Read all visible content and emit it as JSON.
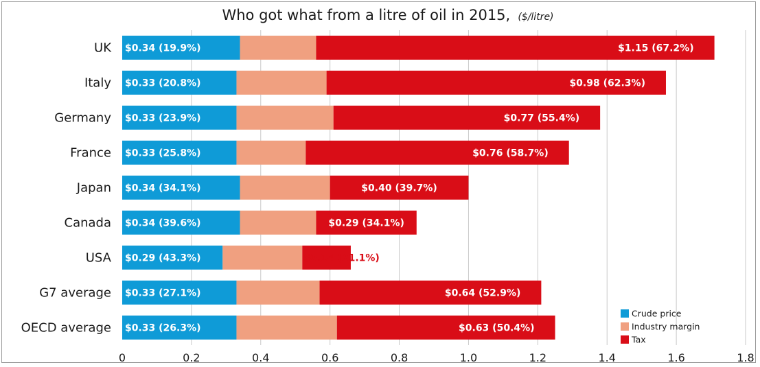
{
  "chart_data": {
    "type": "bar",
    "orientation": "horizontal",
    "stacked": true,
    "title": "Who got what from a litre of oil in 2015,",
    "title_unit": "($/litre)",
    "categories": [
      "UK",
      "Italy",
      "Germany",
      "France",
      "Japan",
      "Canada",
      "USA",
      "G7 average",
      "OECD average"
    ],
    "series": [
      {
        "name": "Crude price",
        "color": "#0f9bd7",
        "values": [
          0.34,
          0.33,
          0.33,
          0.33,
          0.34,
          0.34,
          0.29,
          0.33,
          0.33
        ],
        "labels": [
          "$0.34 (19.9%)",
          "$0.33 (20.8%)",
          "$0.33  (23.9%)",
          "$0.33  (25.8%)",
          "$0.34  (34.1%)",
          "$0.34  (39.6%)",
          "$0.29  (43.3%)",
          "$0.33 (27.1%)",
          "$0.33  (26.3%)"
        ]
      },
      {
        "name": "Industry margin",
        "color": "#f0a080",
        "values": [
          0.22,
          0.26,
          0.28,
          0.2,
          0.26,
          0.22,
          0.23,
          0.24,
          0.29
        ],
        "labels": []
      },
      {
        "name": "Tax",
        "color": "#d90d17",
        "values": [
          1.15,
          0.98,
          0.77,
          0.76,
          0.4,
          0.29,
          0.14,
          0.64,
          0.63
        ],
        "labels": [
          "$1.15 (67.2%)",
          "$0.98 (62.3%)",
          "$0.77 (55.4%)",
          "$0.76 (58.7%)",
          "$0.40  (39.7%)",
          "$0.29 (34.1%)",
          "$0.14 (21.1%)",
          "$0.64 (52.9%)",
          "$0.63 (50.4%)"
        ]
      }
    ],
    "xlim": [
      0,
      1.8
    ],
    "xticks": [
      "0",
      "0.2",
      "0.4",
      "0.6",
      "0.8",
      "1.0",
      "1.2",
      "1.4",
      "1.6",
      "1.8"
    ],
    "grid": true,
    "legend_position": "bottom-right"
  }
}
